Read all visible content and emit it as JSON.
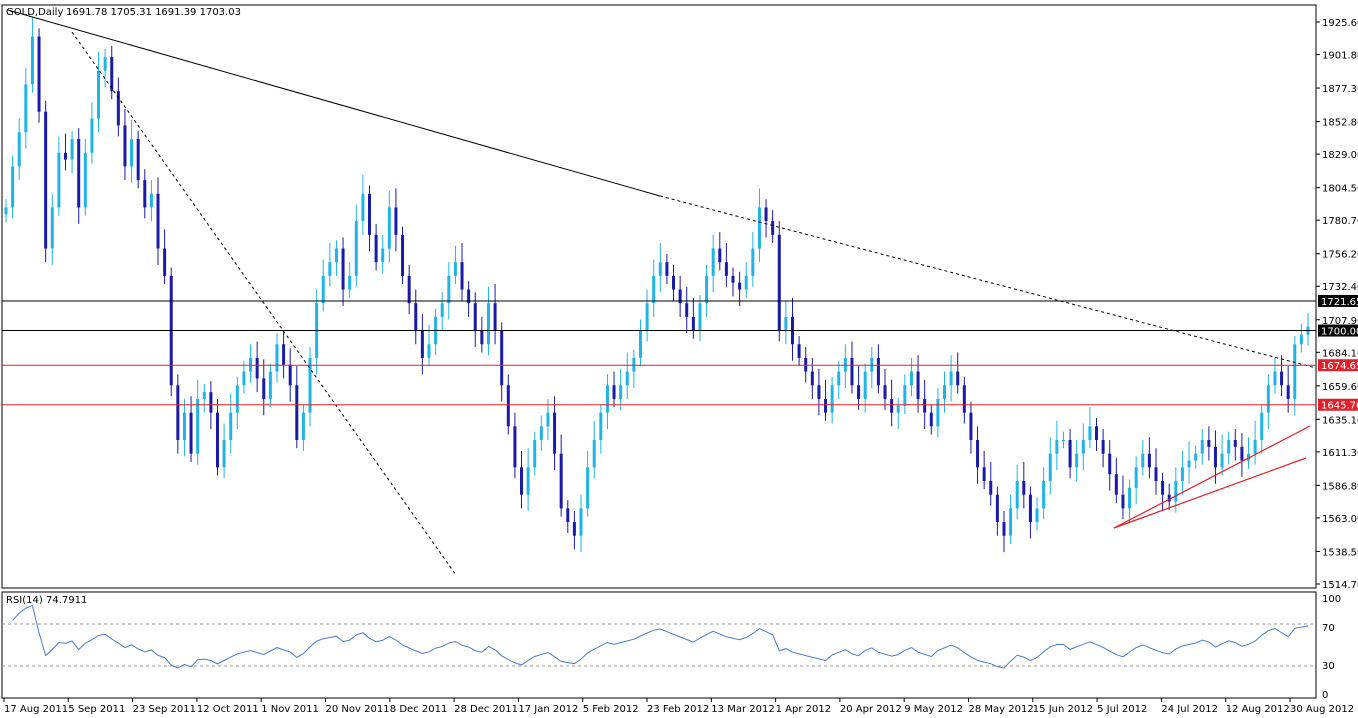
{
  "header": {
    "symbol_info": "GOLD,Daily",
    "ohlc": "1691.78 1705.31 1691.39 1703.03"
  },
  "colors": {
    "bull": "#1fb4e6",
    "bear": "#1a1aa6",
    "trend": "#000000",
    "support": "#e0202a",
    "rsi_line": "#4a7ec6"
  },
  "price_axis": {
    "ticks": [
      "1925.60",
      "1901.80",
      "1877.30",
      "1852.80",
      "1829.00",
      "1804.50",
      "1780.70",
      "1756.20",
      "1732.40",
      "1707.90",
      "1684.10",
      "1659.60",
      "1635.10",
      "1611.30",
      "1586.80",
      "1563.00",
      "1538.50",
      "1514.70"
    ]
  },
  "levels": [
    {
      "value": "1721.65",
      "kind": "resistance"
    },
    {
      "value": "1700.00",
      "kind": "current"
    },
    {
      "value": "1674.65",
      "kind": "support"
    },
    {
      "value": "1645.76",
      "kind": "support"
    }
  ],
  "rsi": {
    "label": "RSI(14) 74.7911",
    "ticks": [
      "100",
      "70",
      "30",
      "0"
    ]
  },
  "time_axis": {
    "labels": [
      "17 Aug 2011",
      "5 Sep 2011",
      "23 Sep 2011",
      "12 Oct 2011",
      "1 Nov 2011",
      "20 Nov 2011",
      "8 Dec 2011",
      "28 Dec 2011",
      "17 Jan 2012",
      "5 Feb 2012",
      "23 Feb 2012",
      "13 Mar 2012",
      "1 Apr 2012",
      "20 Apr 2012",
      "9 May 2012",
      "28 May 2012",
      "15 Jun 2012",
      "5 Jul 2012",
      "24 Jul 2012",
      "12 Aug 2012",
      "30 Aug 2012"
    ]
  },
  "chart_data": {
    "type": "candlestick",
    "instrument": "GOLD",
    "timeframe": "Daily",
    "y_range": [
      1514.7,
      1925.6
    ],
    "x_range": [
      "17 Aug 2011",
      "5 Sep 2012"
    ],
    "series": [
      {
        "close": [
          1790,
          1820,
          1845,
          1880,
          1915,
          1860,
          1760,
          1790,
          1830,
          1825,
          1840,
          1790,
          1830,
          1855,
          1890,
          1900,
          1875,
          1850,
          1820,
          1840,
          1810,
          1790,
          1800,
          1760,
          1740,
          1660,
          1620,
          1640,
          1610,
          1650,
          1655,
          1640,
          1600,
          1620,
          1640,
          1660,
          1670,
          1680,
          1665,
          1650,
          1670,
          1690,
          1675,
          1660,
          1620,
          1640,
          1680,
          1720,
          1740,
          1750,
          1760,
          1730,
          1740,
          1780,
          1800,
          1770,
          1750,
          1760,
          1790,
          1770,
          1740,
          1720,
          1700,
          1680,
          1690,
          1710,
          1720,
          1740,
          1750,
          1730,
          1720,
          1700,
          1690,
          1720,
          1700,
          1660,
          1630,
          1600,
          1580,
          1600,
          1620,
          1630,
          1640,
          1610,
          1570,
          1560,
          1550,
          1570,
          1600,
          1620,
          1640,
          1660,
          1650,
          1660,
          1670,
          1680,
          1700,
          1720,
          1740,
          1750,
          1740,
          1730,
          1720,
          1710,
          1700,
          1720,
          1740,
          1760,
          1750,
          1740,
          1735,
          1730,
          1740,
          1760,
          1790,
          1780,
          1770,
          1700,
          1710,
          1690,
          1680,
          1670,
          1660,
          1650,
          1640,
          1660,
          1670,
          1680,
          1660,
          1650,
          1670,
          1680,
          1660,
          1650,
          1640,
          1645,
          1660,
          1670,
          1650,
          1640,
          1630,
          1650,
          1660,
          1670,
          1660,
          1640,
          1620,
          1600,
          1590,
          1580,
          1560,
          1550,
          1570,
          1590,
          1580,
          1560,
          1570,
          1590,
          1610,
          1620,
          1620,
          1600,
          1610,
          1620,
          1630,
          1620,
          1610,
          1595,
          1580,
          1570,
          1585,
          1600,
          1610,
          1600,
          1590,
          1580,
          1575,
          1590,
          1600,
          1605,
          1610,
          1620,
          1615,
          1600,
          1610,
          1620,
          1615,
          1605,
          1610,
          1620,
          1640,
          1660,
          1670,
          1660,
          1650,
          1690,
          1697,
          1703
        ]
      }
    ],
    "annotations": {
      "horizontal_lines": [
        1721.65,
        1700.0,
        1674.65,
        1645.76
      ],
      "indicator": "RSI(14)",
      "indicator_value": 74.7911,
      "indicator_levels": [
        70,
        30
      ]
    }
  }
}
